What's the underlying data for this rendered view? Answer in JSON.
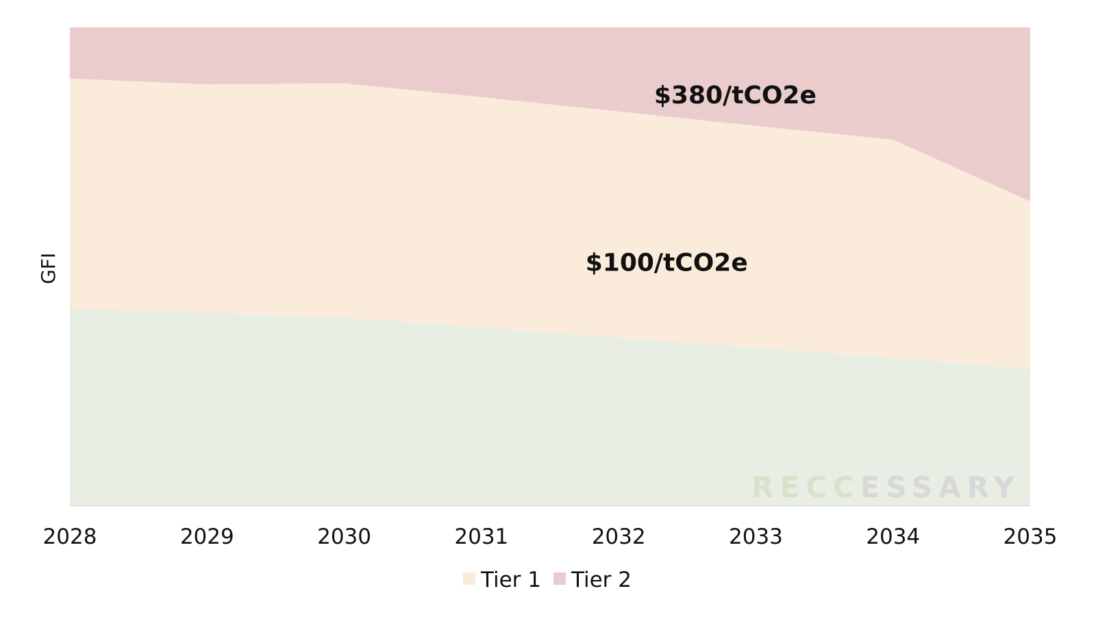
{
  "chart_data": {
    "type": "area",
    "stacked": true,
    "x": [
      2028,
      2029,
      2030,
      2031,
      2032,
      2033,
      2034,
      2035
    ],
    "xlim": [
      2028,
      2035
    ],
    "ylim": [
      0,
      100
    ],
    "ylabel": "GFI",
    "grid": false,
    "series": [
      {
        "name": "",
        "values": [
          41.2,
          40.3,
          39.3,
          37.2,
          35.1,
          33.0,
          30.8,
          28.6
        ]
      },
      {
        "name": "Tier 1",
        "values": [
          48.1,
          47.8,
          49.0,
          48.2,
          47.3,
          46.4,
          45.7,
          35.0
        ]
      },
      {
        "name": "Tier 2",
        "values": [
          10.7,
          11.9,
          11.7,
          14.6,
          17.6,
          20.6,
          23.5,
          36.4
        ]
      }
    ],
    "annotations": [
      {
        "text": "$380/tCO2e",
        "x": 2032.85,
        "y": 85.5
      },
      {
        "text": "$100/tCO2e",
        "x": 2032.35,
        "y": 50.5
      }
    ],
    "legend_placement": "bottom",
    "watermark": {
      "text": "RECCESSARY",
      "colors": [
        "#d7e2cb",
        "#d8d8d8"
      ]
    },
    "colors": {
      "base": "#e8eee3",
      "tier1": "#faebdb",
      "tier2": "#ebcccd",
      "axis": "#d9d9d9"
    }
  }
}
